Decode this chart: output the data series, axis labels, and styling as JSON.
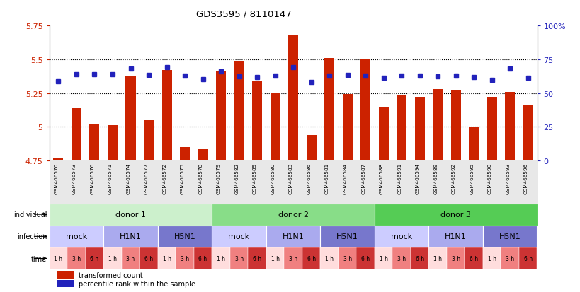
{
  "title": "GDS3595 / 8110147",
  "gsm_ids": [
    "GSM466570",
    "GSM466573",
    "GSM466576",
    "GSM466571",
    "GSM466574",
    "GSM466577",
    "GSM466572",
    "GSM466575",
    "GSM466578",
    "GSM466579",
    "GSM466582",
    "GSM466585",
    "GSM466580",
    "GSM466583",
    "GSM466586",
    "GSM466581",
    "GSM466584",
    "GSM466587",
    "GSM466588",
    "GSM466591",
    "GSM466594",
    "GSM466589",
    "GSM466592",
    "GSM466595",
    "GSM466590",
    "GSM466593",
    "GSM466596"
  ],
  "bar_values": [
    4.77,
    5.14,
    5.02,
    5.01,
    5.38,
    5.05,
    5.42,
    4.85,
    4.835,
    5.41,
    5.49,
    5.34,
    5.25,
    5.68,
    4.94,
    5.51,
    5.24,
    5.5,
    5.15,
    5.23,
    5.22,
    5.28,
    5.27,
    5.0,
    5.22,
    5.26,
    5.16
  ],
  "percentile_values": [
    5.335,
    5.39,
    5.39,
    5.39,
    5.43,
    5.385,
    5.44,
    5.38,
    5.355,
    5.41,
    5.375,
    5.37,
    5.38,
    5.44,
    5.33,
    5.38,
    5.385,
    5.38,
    5.365,
    5.38,
    5.38,
    5.375,
    5.38,
    5.37,
    5.35,
    5.43,
    5.365
  ],
  "ylim": [
    4.75,
    5.75
  ],
  "yticks": [
    4.75,
    5.0,
    5.25,
    5.5,
    5.75
  ],
  "ytick_labels": [
    "4.75",
    "5",
    "5.25",
    "5.5",
    "5.75"
  ],
  "right_yticks": [
    0,
    25,
    50,
    75,
    100
  ],
  "right_ytick_labels": [
    "0",
    "25",
    "50",
    "75",
    "100%"
  ],
  "bar_color": "#cc2200",
  "blue_color": "#2222bb",
  "bar_bottom": 4.75,
  "donors": [
    {
      "label": "donor 1",
      "start": 0,
      "end": 9,
      "color": "#ccf0cc"
    },
    {
      "label": "donor 2",
      "start": 9,
      "end": 18,
      "color": "#88dd88"
    },
    {
      "label": "donor 3",
      "start": 18,
      "end": 27,
      "color": "#55cc55"
    }
  ],
  "infections": [
    {
      "label": "mock",
      "start": 0,
      "end": 3,
      "color": "#ccccff"
    },
    {
      "label": "H1N1",
      "start": 3,
      "end": 6,
      "color": "#aaaaee"
    },
    {
      "label": "H5N1",
      "start": 6,
      "end": 9,
      "color": "#7777cc"
    },
    {
      "label": "mock",
      "start": 9,
      "end": 12,
      "color": "#ccccff"
    },
    {
      "label": "H1N1",
      "start": 12,
      "end": 15,
      "color": "#aaaaee"
    },
    {
      "label": "H5N1",
      "start": 15,
      "end": 18,
      "color": "#7777cc"
    },
    {
      "label": "mock",
      "start": 18,
      "end": 21,
      "color": "#ccccff"
    },
    {
      "label": "H1N1",
      "start": 21,
      "end": 24,
      "color": "#aaaaee"
    },
    {
      "label": "H5N1",
      "start": 24,
      "end": 27,
      "color": "#7777cc"
    }
  ],
  "times": [
    "1 h",
    "3 h",
    "6 h",
    "1 h",
    "3 h",
    "6 h",
    "1 h",
    "3 h",
    "6 h",
    "1 h",
    "3 h",
    "6 h",
    "1 h",
    "3 h",
    "6 h",
    "1 h",
    "3 h",
    "6 h",
    "1 h",
    "3 h",
    "6 h",
    "1 h",
    "3 h",
    "6 h",
    "1 h",
    "3 h",
    "6 h"
  ],
  "time_colors": [
    "#ffdddd",
    "#f08080",
    "#cc3333",
    "#ffdddd",
    "#f08080",
    "#cc3333",
    "#ffdddd",
    "#f08080",
    "#cc3333",
    "#ffdddd",
    "#f08080",
    "#cc3333",
    "#ffdddd",
    "#f08080",
    "#cc3333",
    "#ffdddd",
    "#f08080",
    "#cc3333",
    "#ffdddd",
    "#f08080",
    "#cc3333",
    "#ffdddd",
    "#f08080",
    "#cc3333",
    "#ffdddd",
    "#f08080",
    "#cc3333"
  ],
  "legend_bar_label": "transformed count",
  "legend_blue_label": "percentile rank within the sample",
  "grid_lines": [
    5.0,
    5.25,
    5.5
  ]
}
